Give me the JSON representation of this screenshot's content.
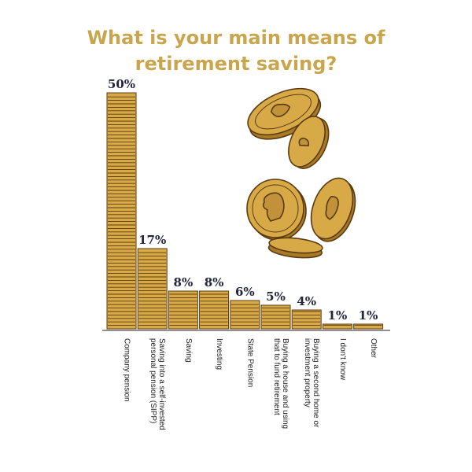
{
  "title_lines": [
    "What is your main means of",
    "retirement saving?"
  ],
  "colors": {
    "title": "#c9a54e",
    "coin_fill": "#d8aa47",
    "coin_stripe": "#5a3a10",
    "coin_highlight": "#f0c868",
    "value_label": "#23253a",
    "axis": "#222222"
  },
  "chart_data": {
    "type": "bar",
    "title": "What is your main means of retirement saving?",
    "unit": "%",
    "categories": [
      [
        "Company pension"
      ],
      [
        "Saving into a self-invested",
        "personal pension (SIPP)"
      ],
      [
        "Saving"
      ],
      [
        "Investing"
      ],
      [
        "State Pension"
      ],
      [
        "Buying a house and using",
        "that to fund retirement"
      ],
      [
        "Buying a second home or",
        "investment property"
      ],
      [
        "I don't know"
      ],
      [
        "Other"
      ]
    ],
    "values": [
      50,
      17,
      8,
      8,
      6,
      5,
      4,
      1,
      1
    ],
    "value_labels": [
      "50%",
      "17%",
      "8%",
      "8%",
      "6%",
      "5%",
      "4%",
      "1%",
      "1%"
    ],
    "ylim": [
      0,
      50
    ],
    "xlabel": "",
    "ylabel": "",
    "grid": false
  }
}
